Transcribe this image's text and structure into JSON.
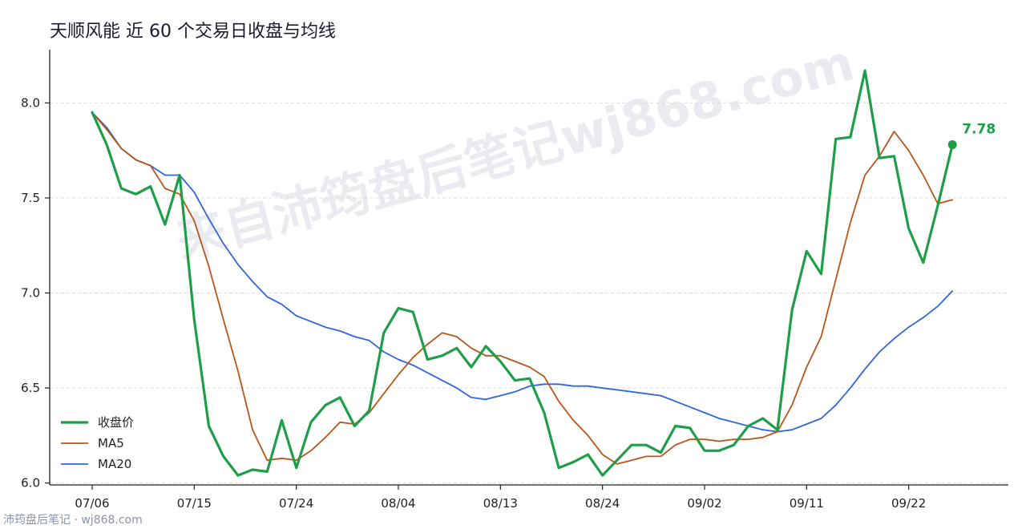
{
  "watermark": "来自沛筠盘后笔记wj868.com",
  "footer": "沛筠盘后笔记 · wj868.com",
  "colors": {
    "close": "#1e9e48",
    "ma5": "#b8561a",
    "ma20": "#2f66d9"
  },
  "chart_data": {
    "type": "line",
    "title": "天顺风能 近 60 个交易日收盘与均线",
    "xlabel": "",
    "ylabel": "",
    "ylim": [
      5.99,
      8.28
    ],
    "yticks": [
      6.0,
      6.5,
      7.0,
      7.5,
      8.0
    ],
    "yticklabels": [
      "6.0",
      "6.5",
      "7.0",
      "7.5",
      "8.0"
    ],
    "xticks": [
      0,
      7,
      14,
      21,
      28,
      35,
      42,
      49,
      56
    ],
    "xticklabels": [
      "07/06",
      "07/15",
      "07/24",
      "08/04",
      "08/13",
      "08/24",
      "09/02",
      "09/11",
      "09/22"
    ],
    "grid": "horizontal-dashed",
    "legend": "bottom-left",
    "end_label": "7.78",
    "series": [
      {
        "name": "收盘价",
        "values": [
          7.95,
          7.78,
          7.55,
          7.52,
          7.56,
          7.36,
          7.62,
          6.86,
          6.3,
          6.14,
          6.04,
          6.07,
          6.06,
          6.33,
          6.08,
          6.32,
          6.41,
          6.45,
          6.3,
          6.38,
          6.79,
          6.92,
          6.9,
          6.65,
          6.67,
          6.71,
          6.61,
          6.72,
          6.64,
          6.54,
          6.55,
          6.37,
          6.08,
          6.11,
          6.15,
          6.04,
          6.12,
          6.2,
          6.2,
          6.16,
          6.3,
          6.29,
          6.17,
          6.17,
          6.2,
          6.3,
          6.34,
          6.28,
          6.91,
          7.22,
          7.1,
          7.81,
          7.82,
          8.17,
          7.71,
          7.72,
          7.34,
          7.16,
          7.46,
          7.78
        ]
      },
      {
        "name": "MA5",
        "values": [
          7.95,
          7.86,
          7.76,
          7.7,
          7.67,
          7.55,
          7.52,
          7.38,
          7.14,
          6.86,
          6.59,
          6.28,
          6.12,
          6.13,
          6.12,
          6.17,
          6.24,
          6.32,
          6.31,
          6.37,
          6.47,
          6.57,
          6.66,
          6.73,
          6.79,
          6.77,
          6.71,
          6.67,
          6.67,
          6.64,
          6.61,
          6.56,
          6.43,
          6.33,
          6.25,
          6.15,
          6.1,
          6.12,
          6.14,
          6.14,
          6.2,
          6.23,
          6.23,
          6.22,
          6.23,
          6.23,
          6.24,
          6.27,
          6.41,
          6.61,
          6.77,
          7.07,
          7.37,
          7.62,
          7.72,
          7.85,
          7.75,
          7.62,
          7.47,
          7.49
        ]
      },
      {
        "name": "MA20",
        "values": [
          7.95,
          7.87,
          7.76,
          7.7,
          7.67,
          7.62,
          7.62,
          7.53,
          7.39,
          7.26,
          7.15,
          7.06,
          6.98,
          6.94,
          6.88,
          6.85,
          6.82,
          6.8,
          6.77,
          6.75,
          6.69,
          6.65,
          6.62,
          6.58,
          6.54,
          6.5,
          6.45,
          6.44,
          6.46,
          6.48,
          6.51,
          6.52,
          6.52,
          6.51,
          6.51,
          6.5,
          6.49,
          6.48,
          6.47,
          6.46,
          6.43,
          6.4,
          6.37,
          6.34,
          6.32,
          6.3,
          6.28,
          6.27,
          6.28,
          6.31,
          6.34,
          6.41,
          6.5,
          6.6,
          6.69,
          6.76,
          6.82,
          6.87,
          6.93,
          7.01
        ]
      }
    ]
  }
}
